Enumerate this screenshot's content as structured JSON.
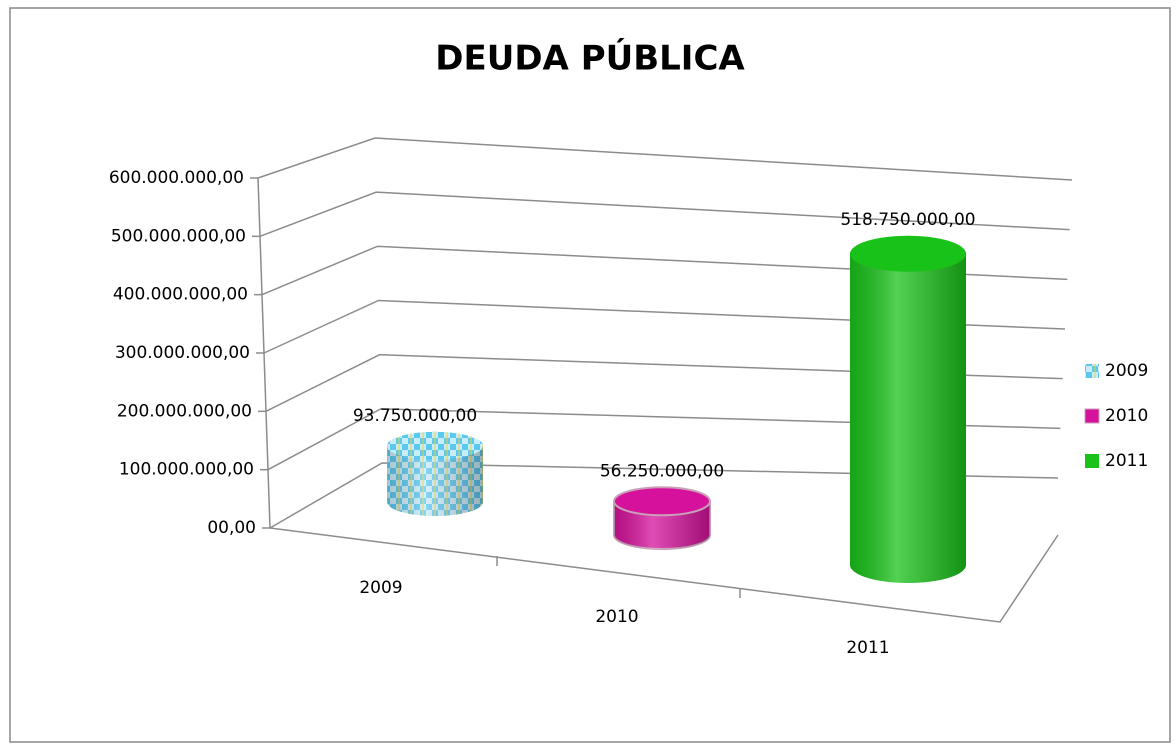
{
  "chart_data": {
    "type": "cylinder3d",
    "title": "DEUDA PÚBLICA",
    "categories": [
      "2009",
      "2010",
      "2011"
    ],
    "values": [
      93750000,
      56250000,
      518750000
    ],
    "value_labels": [
      "93.750.000,00",
      "56.250.000,00",
      "518.750.000,00"
    ],
    "colors": [
      "#5bc8f0",
      "#d6119c",
      "#19c219"
    ],
    "ylim": [
      0,
      600000000
    ],
    "yticks": [
      {
        "value": 0,
        "label": "00,00"
      },
      {
        "value": 100000000,
        "label": "100.000.000,00"
      },
      {
        "value": 200000000,
        "label": "200.000.000,00"
      },
      {
        "value": 300000000,
        "label": "300.000.000,00"
      },
      {
        "value": 400000000,
        "label": "400.000.000,00"
      },
      {
        "value": 500000000,
        "label": "500.000.000,00"
      },
      {
        "value": 600000000,
        "label": "600.000.000,00"
      }
    ],
    "grid": true,
    "legend": "right"
  }
}
